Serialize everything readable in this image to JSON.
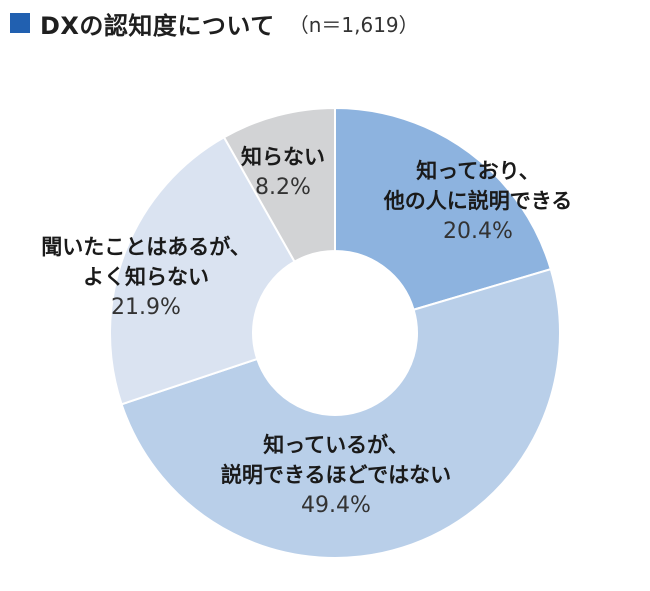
{
  "header": {
    "title": "DXの認知度について",
    "note": "（n＝1,619）",
    "marker_color": "#2160b0"
  },
  "chart_data": {
    "type": "donut",
    "title": "DXの認知度について",
    "n": "n＝1,619",
    "start_angle_deg": 0,
    "direction": "clockwise",
    "slices": [
      {
        "label": [
          "知っており、",
          "他の人に説明できる"
        ],
        "value": 20.4,
        "value_label": "20.4%",
        "color": "#8db3df"
      },
      {
        "label": [
          "知っているが、",
          "説明できるほどではない"
        ],
        "value": 49.4,
        "value_label": "49.4%",
        "color": "#b9cfe9"
      },
      {
        "label": [
          "聞いたことはあるが、",
          "よく知らない"
        ],
        "value": 21.9,
        "value_label": "21.9%",
        "color": "#dae3f1"
      },
      {
        "label": [
          "知らない"
        ],
        "value": 8.2,
        "value_label": "8.2%",
        "color": "#d2d3d5"
      }
    ]
  }
}
